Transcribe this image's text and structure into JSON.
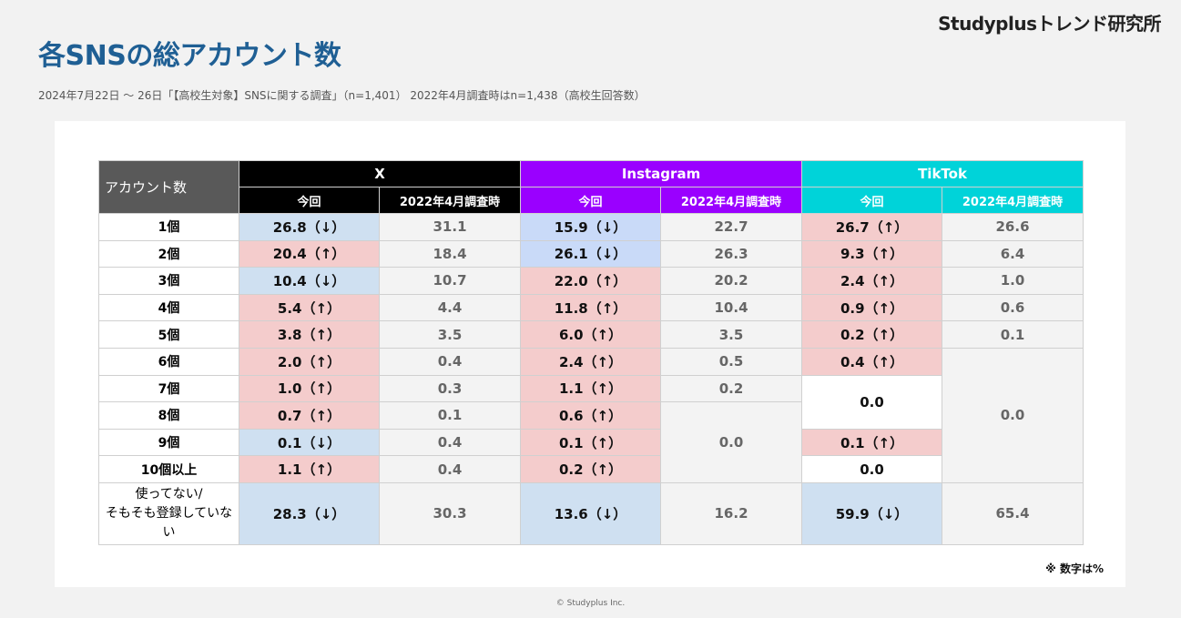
{
  "brand": "Studyplusトレンド研究所",
  "title": "各SNSの総アカウント数",
  "subtitle": "2024年7月22日 〜 26日「【高校生対象】SNSに関する調査」（n=1,401） 2022年4月調査時はn=1,438（高校生回答数）",
  "table": {
    "row_header": "アカウント数",
    "platforms": [
      "X",
      "Instagram",
      "TikTok"
    ],
    "platform_display": [
      "X",
      "Instagram",
      "TikTok"
    ],
    "sub_current": "今回",
    "sub_prev": "2022年4月調査時",
    "rows": [
      {
        "label": "1個",
        "x_now": "26.8（↓）",
        "x_prev": "31.1",
        "ig_now": "15.9（↓）",
        "ig_prev": "22.7",
        "tt_now": "26.7（↑）",
        "tt_prev": "26.6"
      },
      {
        "label": "2個",
        "x_now": "20.4（↑）",
        "x_prev": "18.4",
        "ig_now": "26.1（↓）",
        "ig_prev": "26.3",
        "tt_now": "9.3（↑）",
        "tt_prev": "6.4"
      },
      {
        "label": "3個",
        "x_now": "10.4（↓）",
        "x_prev": "10.7",
        "ig_now": "22.0（↑）",
        "ig_prev": "20.2",
        "tt_now": "2.4（↑）",
        "tt_prev": "1.0"
      },
      {
        "label": "4個",
        "x_now": "5.4（↑）",
        "x_prev": "4.4",
        "ig_now": "11.8（↑）",
        "ig_prev": "10.4",
        "tt_now": "0.9（↑）",
        "tt_prev": "0.6"
      },
      {
        "label": "5個",
        "x_now": "3.8（↑）",
        "x_prev": "3.5",
        "ig_now": "6.0（↑）",
        "ig_prev": "3.5",
        "tt_now": "0.2（↑）",
        "tt_prev": "0.1"
      },
      {
        "label": "6個",
        "x_now": "2.0（↑）",
        "x_prev": "0.4",
        "ig_now": "2.4（↑）",
        "ig_prev": "0.5",
        "tt_now": "0.4（↑）",
        "tt_prev": "0.0"
      },
      {
        "label": "7個",
        "x_now": "1.0（↑）",
        "x_prev": "0.3",
        "ig_now": "1.1（↑）",
        "ig_prev": "0.2",
        "tt_now": "0.0"
      },
      {
        "label": "8個",
        "x_now": "0.7（↑）",
        "x_prev": "0.1",
        "ig_now": "0.6（↑）",
        "ig_prev": "0.0"
      },
      {
        "label": "9個",
        "x_now": "0.1（↓）",
        "x_prev": "0.4",
        "ig_now": "0.1（↑）",
        "tt_now": "0.1（↑）"
      },
      {
        "label": "10個以上",
        "x_now": "1.1（↑）",
        "x_prev": "0.4",
        "ig_now": "0.2（↑）",
        "tt_now": "0.0"
      },
      {
        "label": "使ってない/\nそもそも登録していない",
        "x_now": "28.3（↓）",
        "x_prev": "30.3",
        "ig_now": "13.6（↓）",
        "ig_prev": "16.2",
        "tt_now": "59.9（↓）",
        "tt_prev": "65.4"
      }
    ]
  },
  "note": "※ 数字は%",
  "copyright": "© Studyplus Inc.",
  "colors": {
    "title": "#1f5f94",
    "x_header": "#000000",
    "instagram_header": "#9a00ff",
    "tiktok_header": "#00d3d9",
    "increase_fill": "#f4cccc",
    "decrease_fill": "#cfe0f1",
    "previous_fill": "#f3f3f3"
  }
}
